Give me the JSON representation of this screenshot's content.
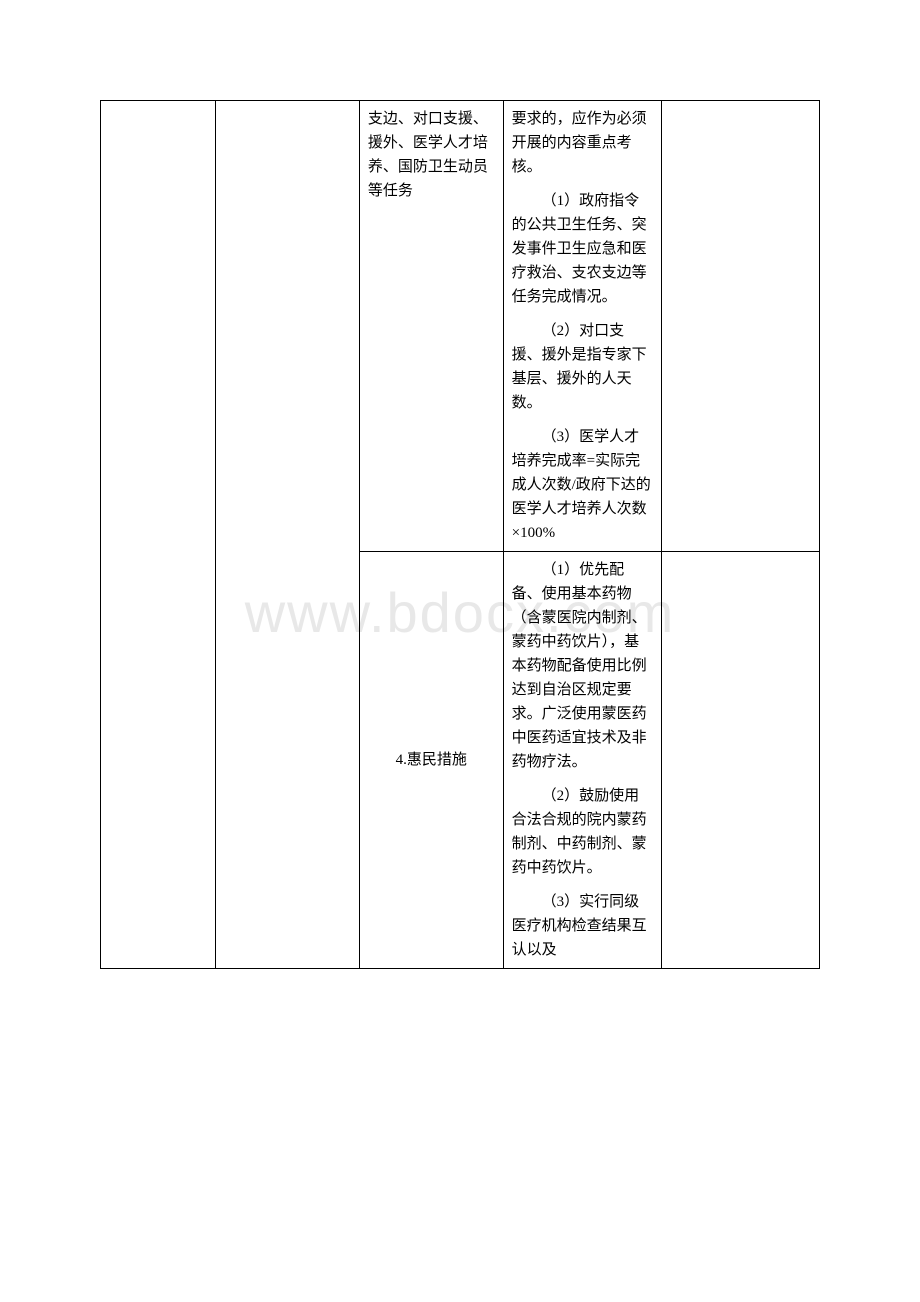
{
  "watermark": "www.bdocx.com",
  "table": {
    "rows": [
      {
        "col3": "支边、对口支援、援外、医学人才培养、国防卫生动员等任务",
        "col4_paragraphs": [
          "要求的，应作为必须开展的内容重点考核。",
          "（1）政府指令的公共卫生任务、突发事件卫生应急和医疗救治、支农支边等任务完成情况。",
          "（2）对口支援、援外是指专家下基层、援外的人天数。",
          "（3）医学人才培养完成率=实际完成人次数/政府下达的医学人才培养人次数×100%"
        ]
      },
      {
        "col3": "4.惠民措施",
        "col4_paragraphs": [
          "（1）优先配备、使用基本药物（含蒙医院内制剂、蒙药中药饮片），基本药物配备使用比例达到自治区规定要求。广泛使用蒙医药中医药适宜技术及非药物疗法。",
          "（2）鼓励使用合法合规的院内蒙药制剂、中药制剂、蒙药中药饮片。",
          "（3）实行同级医疗机构检查结果互认以及"
        ]
      }
    ]
  },
  "styles": {
    "background_color": "#ffffff",
    "border_color": "#000000",
    "watermark_color": "#e8e8e8",
    "font_size": 15,
    "watermark_font_size": 56
  }
}
